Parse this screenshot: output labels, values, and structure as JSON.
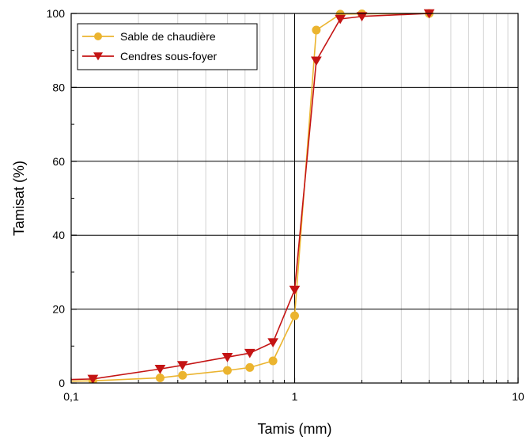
{
  "chart_data": {
    "type": "line",
    "title": "",
    "xlabel": "Tamis (mm)",
    "ylabel": "Tamisat (%)",
    "x_scale": "log",
    "xlim": [
      0.1,
      10
    ],
    "ylim": [
      0,
      100
    ],
    "x_ticks": [
      {
        "value": 0.1,
        "label": "0,1"
      },
      {
        "value": 1,
        "label": "1"
      },
      {
        "value": 10,
        "label": "10"
      }
    ],
    "y_ticks": [
      {
        "value": 0,
        "label": "0"
      },
      {
        "value": 20,
        "label": "20"
      },
      {
        "value": 40,
        "label": "40"
      },
      {
        "value": 60,
        "label": "60"
      },
      {
        "value": 80,
        "label": "80"
      },
      {
        "value": 100,
        "label": "100"
      }
    ],
    "grid": true,
    "legend_position": "top-left",
    "series": [
      {
        "name": "Sable de chaudière",
        "color": "#EBB42F",
        "marker": "circle",
        "x": [
          0.08,
          0.125,
          0.25,
          0.315,
          0.5,
          0.63,
          0.8,
          1.0,
          1.25,
          1.6,
          2.0,
          4.0
        ],
        "y": [
          0.4,
          0.6,
          1.4,
          2.1,
          3.4,
          4.2,
          6.0,
          18.2,
          95.5,
          99.8,
          99.9,
          100
        ]
      },
      {
        "name": "Cendres sous-foyer",
        "color": "#C41414",
        "marker": "triangle-down",
        "x": [
          0.08,
          0.125,
          0.25,
          0.315,
          0.5,
          0.63,
          0.8,
          1.0,
          1.25,
          1.6,
          2.0,
          4.0
        ],
        "y": [
          0.8,
          1.1,
          3.8,
          4.8,
          7.0,
          8.1,
          11.0,
          25.2,
          87.2,
          98.5,
          99.2,
          100
        ]
      }
    ]
  }
}
